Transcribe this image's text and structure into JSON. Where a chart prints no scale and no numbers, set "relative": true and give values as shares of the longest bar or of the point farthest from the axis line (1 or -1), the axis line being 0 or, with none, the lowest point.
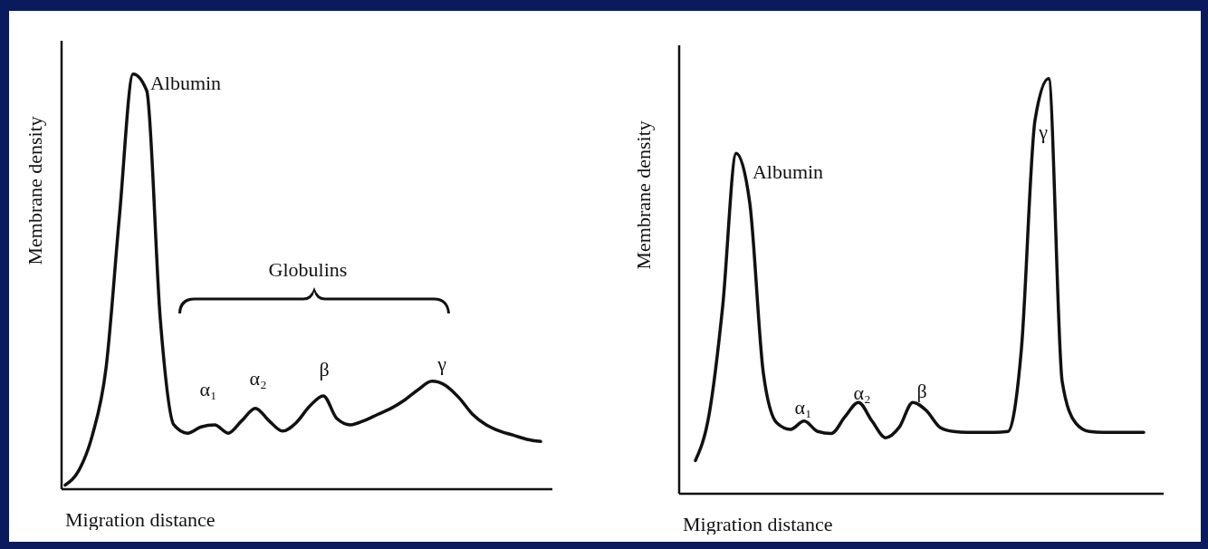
{
  "chart_data": [
    {
      "type": "line",
      "xlabel": "Migration distance",
      "ylabel": "Membrane density",
      "relative": true,
      "color": "#111111",
      "line_style": "solid",
      "categories": [
        null,
        null,
        null,
        null,
        null,
        null,
        null,
        null,
        null,
        null,
        null,
        null,
        null,
        null,
        null,
        null,
        null,
        null,
        null,
        null,
        null,
        null,
        null,
        null,
        null,
        null,
        null,
        null,
        null,
        null,
        null,
        null,
        null,
        null,
        null,
        null
      ],
      "values": [
        0.01,
        0.045,
        0.13,
        0.29,
        0.66,
        1.0,
        0.96,
        0.41,
        0.155,
        0.135,
        0.15,
        0.155,
        0.135,
        0.165,
        0.195,
        0.165,
        0.14,
        0.16,
        0.2,
        0.225,
        0.17,
        0.155,
        0.165,
        0.18,
        0.195,
        0.215,
        0.24,
        0.26,
        0.25,
        0.22,
        0.18,
        0.155,
        0.14,
        0.13,
        0.12,
        0.115
      ],
      "annotations": [
        "Albumin",
        "Globulins",
        "α₁",
        "α₂",
        "β",
        "γ"
      ]
    },
    {
      "type": "line",
      "xlabel": "Migration distance",
      "ylabel": "Membrane density",
      "relative": true,
      "color": "#111111",
      "line_style": "solid",
      "categories": [
        null,
        null,
        null,
        null,
        null,
        null,
        null,
        null,
        null,
        null,
        null,
        null,
        null,
        null,
        null,
        null,
        null,
        null,
        null,
        null,
        null,
        null,
        null,
        null,
        null,
        null,
        null,
        null,
        null,
        null,
        null,
        null,
        null,
        null
      ],
      "values": [
        0.08,
        0.19,
        0.45,
        0.82,
        0.7,
        0.29,
        0.17,
        0.155,
        0.175,
        0.15,
        0.145,
        0.185,
        0.22,
        0.175,
        0.135,
        0.16,
        0.22,
        0.2,
        0.16,
        0.15,
        0.148,
        0.148,
        0.148,
        0.15,
        0.35,
        0.9,
        1.0,
        0.27,
        0.17,
        0.15,
        0.148,
        0.148,
        0.148,
        0.148
      ],
      "annotations": [
        "Albumin",
        "α₁",
        "α₂",
        "β",
        "γ"
      ]
    }
  ]
}
